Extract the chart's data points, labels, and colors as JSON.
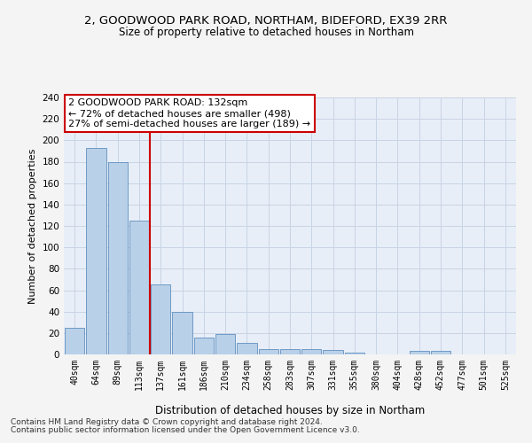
{
  "title1": "2, GOODWOOD PARK ROAD, NORTHAM, BIDEFORD, EX39 2RR",
  "title2": "Size of property relative to detached houses in Northam",
  "xlabel": "Distribution of detached houses by size in Northam",
  "ylabel": "Number of detached properties",
  "categories": [
    "40sqm",
    "64sqm",
    "89sqm",
    "113sqm",
    "137sqm",
    "161sqm",
    "186sqm",
    "210sqm",
    "234sqm",
    "258sqm",
    "283sqm",
    "307sqm",
    "331sqm",
    "355sqm",
    "380sqm",
    "404sqm",
    "428sqm",
    "452sqm",
    "477sqm",
    "501sqm",
    "525sqm"
  ],
  "values": [
    25,
    193,
    180,
    125,
    65,
    40,
    16,
    19,
    11,
    5,
    5,
    5,
    4,
    2,
    0,
    0,
    3,
    3,
    0,
    0,
    0
  ],
  "bar_color": "#b8d0e8",
  "bar_edge_color": "#6090c0",
  "vline_x": 3.5,
  "annotation_title": "2 GOODWOOD PARK ROAD: 132sqm",
  "annotation_line1": "← 72% of detached houses are smaller (498)",
  "annotation_line2": "27% of semi-detached houses are larger (189) →",
  "annotation_box_color": "#ffffff",
  "annotation_edge_color": "#cc0000",
  "vline_color": "#cc0000",
  "grid_color": "#c8d4e4",
  "background_color": "#e8eef8",
  "fig_background_color": "#f4f4f4",
  "footer1": "Contains HM Land Registry data © Crown copyright and database right 2024.",
  "footer2": "Contains public sector information licensed under the Open Government Licence v3.0.",
  "ylim": [
    0,
    240
  ],
  "yticks": [
    0,
    20,
    40,
    60,
    80,
    100,
    120,
    140,
    160,
    180,
    200,
    220,
    240
  ]
}
